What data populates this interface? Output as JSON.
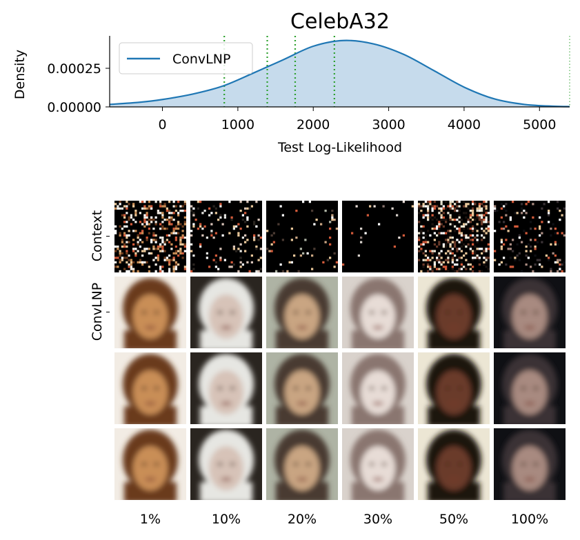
{
  "chart_data": {
    "type": "area",
    "title": "CelebA32",
    "xlabel": "Test Log-Likelihood",
    "ylabel": "Density",
    "xlim": [
      -700,
      5400
    ],
    "ylim": [
      0,
      0.00046
    ],
    "xticks": [
      "0",
      "1000",
      "2000",
      "3000",
      "4000",
      "5000"
    ],
    "xtick_values": [
      0,
      1000,
      2000,
      3000,
      4000,
      5000
    ],
    "yticks": [
      "0.00000",
      "0.00025"
    ],
    "ytick_values": [
      0,
      0.00025
    ],
    "legend": {
      "position": "top-left",
      "entries": [
        "ConvLNP"
      ]
    },
    "series": [
      {
        "name": "ConvLNP",
        "color": "#1f77b4",
        "fill": "#c6dbec",
        "x": [
          -700,
          -300,
          0,
          400,
          800,
          1200,
          1600,
          2000,
          2400,
          2800,
          3200,
          3600,
          4000,
          4400,
          4800,
          5200,
          5400
        ],
        "y": [
          1.6e-05,
          3e-05,
          4.8e-05,
          8.3e-05,
          0.000135,
          0.000218,
          0.000305,
          0.000393,
          0.00043,
          0.000408,
          0.00034,
          0.000235,
          0.000128,
          5.2e-05,
          1.6e-05,
          4e-06,
          2e-06
        ]
      }
    ],
    "vlines": [
      {
        "x": -700,
        "color": "#2ca02c",
        "style": "dotted",
        "width": "thin"
      },
      {
        "x": 820,
        "color": "#2ca02c",
        "style": "dotted",
        "width": "thick"
      },
      {
        "x": 1390,
        "color": "#2ca02c",
        "style": "dotted",
        "width": "thick"
      },
      {
        "x": 1760,
        "color": "#2ca02c",
        "style": "dotted",
        "width": "thick"
      },
      {
        "x": 2280,
        "color": "#2ca02c",
        "style": "dotted",
        "width": "thick"
      },
      {
        "x": 5400,
        "color": "#2ca02c",
        "style": "dotted",
        "width": "thin"
      }
    ]
  },
  "image_grid": {
    "row_labels": [
      "Context",
      "ConvLNP"
    ],
    "column_labels": [
      "1%",
      "10%",
      "20%",
      "30%",
      "50%",
      "100%"
    ],
    "columns": [
      {
        "hair": "#6b3a1c",
        "skin": "#c98e56",
        "bg": "#f2ece4",
        "context_density": 0.28
      },
      {
        "hair": "#e6e6e2",
        "skin": "#d7c3b8",
        "bg": "#2a2520",
        "context_density": 0.12
      },
      {
        "hair": "#4a3a32",
        "skin": "#c9a582",
        "bg": "#aeb3a4",
        "context_density": 0.06
      },
      {
        "hair": "#8a7670",
        "skin": "#e7dcd6",
        "bg": "#d9d2cc",
        "context_density": 0.02
      },
      {
        "hair": "#1c1410",
        "skin": "#6a3a2a",
        "bg": "#ece6d4",
        "context_density": 0.38
      },
      {
        "hair": "#3a3236",
        "skin": "#a88a80",
        "bg": "#0f1014",
        "context_density": 0.16
      }
    ]
  }
}
